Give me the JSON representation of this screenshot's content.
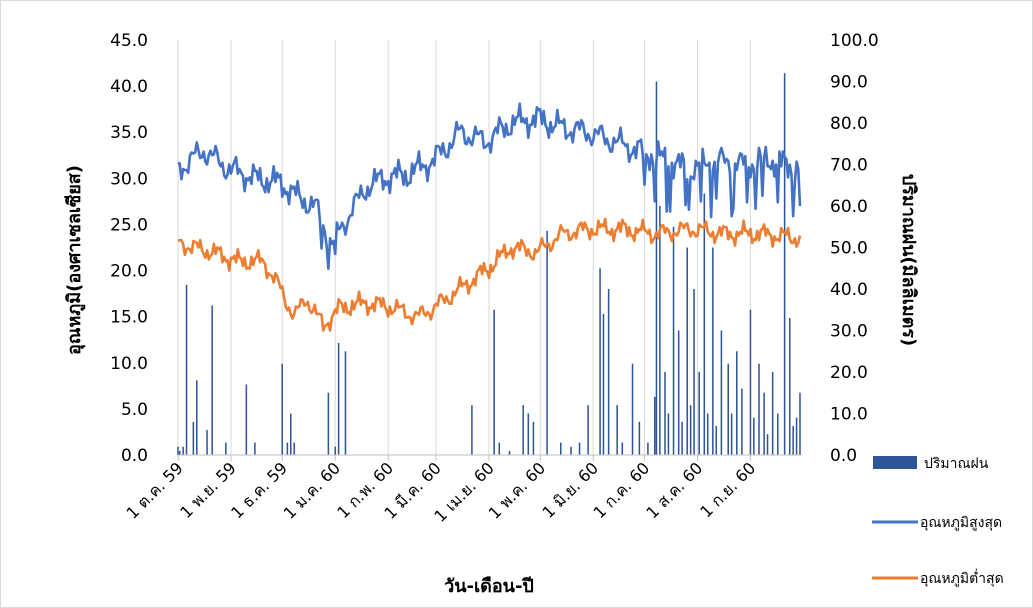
{
  "chart_data": {
    "type": "bar",
    "title": "",
    "xlabel": "วัน-เดือน-ปี",
    "ylabel_left": "อุณหภูมิ(องศาเซลเซียส)",
    "ylabel_right": "ปริมาณฝน(มิลลิเมตร)",
    "ylim_left": [
      0,
      45
    ],
    "ylim_right": [
      0,
      100
    ],
    "yticks_left": [
      "0.0",
      "5.0",
      "10.0",
      "15.0",
      "20.0",
      "25.0",
      "30.0",
      "35.0",
      "40.0",
      "45.0"
    ],
    "yticks_right": [
      "0.0",
      "10.0",
      "20.0",
      "30.0",
      "40.0",
      "50.0",
      "60.0",
      "70.0",
      "80.0",
      "90.0",
      "100.0"
    ],
    "grid": "vertical",
    "legend_position": "right",
    "xtick_labels": [
      {
        "date": "2016-10-01",
        "label": "1 ต.ค. 59"
      },
      {
        "date": "2016-11-01",
        "label": "1 พ.ย. 59"
      },
      {
        "date": "2016-12-01",
        "label": "1 ธ.ค. 59"
      },
      {
        "date": "2017-01-01",
        "label": "1 ม.ค. 60"
      },
      {
        "date": "2017-02-01",
        "label": "1 ก.พ. 60"
      },
      {
        "date": "2017-03-01",
        "label": "1 มี.ค. 60"
      },
      {
        "date": "2017-04-01",
        "label": "1 เม.ย. 60"
      },
      {
        "date": "2017-05-01",
        "label": "1 พ.ค. 60"
      },
      {
        "date": "2017-06-01",
        "label": "1 มิ.ย. 60"
      },
      {
        "date": "2017-07-01",
        "label": "1 ก.ค. 60"
      },
      {
        "date": "2017-08-01",
        "label": "1 ส.ค. 60"
      },
      {
        "date": "2017-09-01",
        "label": "1 ก.ย. 60"
      }
    ],
    "x": {
      "start": "2016-10-01",
      "end": "2017-09-30",
      "step": "1 day"
    },
    "series": [
      {
        "name": "ปริมาณฝน",
        "type": "bar",
        "axis": "right",
        "color": "#2f5597",
        "values": [
          2,
          1,
          0,
          2,
          0,
          0,
          0,
          0,
          0,
          0,
          0,
          0,
          0,
          0,
          0,
          0,
          0,
          0,
          0,
          0,
          0,
          0,
          0,
          0,
          0,
          0,
          0,
          0,
          0,
          0,
          0,
          0,
          0,
          0,
          0,
          0,
          0,
          0,
          0,
          0,
          0,
          0,
          0,
          0,
          0,
          0,
          0,
          0,
          0,
          0,
          0,
          0,
          0,
          0,
          0,
          0,
          0,
          0,
          0,
          0,
          0,
          0,
          0,
          0,
          0,
          0,
          0,
          0,
          0,
          0,
          0,
          0,
          0,
          0,
          0,
          0,
          0,
          0,
          0,
          0,
          0,
          0,
          0,
          0,
          0,
          0,
          0,
          0,
          0,
          0,
          0,
          0,
          0,
          0,
          0,
          0,
          0,
          0,
          0,
          0,
          0,
          0,
          0,
          0,
          0,
          0,
          0,
          0,
          0,
          0,
          0,
          0,
          0,
          0,
          0,
          0,
          0,
          0,
          0,
          0,
          0,
          0,
          0,
          0,
          0,
          0,
          0,
          0,
          0,
          0,
          0,
          0,
          0,
          0,
          0,
          0,
          0,
          0,
          0,
          0,
          0,
          0,
          0,
          0,
          0,
          0,
          0,
          0,
          0,
          0,
          0,
          0,
          0,
          0,
          0,
          0,
          0,
          0,
          0,
          0,
          0,
          0,
          0,
          0,
          0,
          0,
          0,
          0,
          0,
          0,
          0,
          0,
          0,
          0,
          0,
          0,
          0,
          0,
          0,
          0,
          0,
          0,
          0,
          0,
          0,
          0,
          0,
          0,
          0,
          0,
          0,
          0,
          0,
          0,
          0,
          0,
          0,
          0,
          0,
          0,
          0,
          0,
          0,
          0,
          0,
          0,
          0,
          0,
          0,
          0,
          0,
          0,
          0,
          0,
          0,
          0,
          0,
          0,
          0,
          0,
          0,
          0,
          0,
          0,
          0,
          0,
          0,
          0,
          0,
          0,
          0,
          0,
          0,
          0,
          0,
          0,
          0,
          0,
          0,
          0,
          0,
          0,
          0,
          0,
          0,
          0,
          0,
          0,
          0,
          0,
          0,
          0,
          0,
          0,
          0,
          0,
          0,
          0,
          0,
          0,
          0,
          0,
          0,
          0,
          0,
          0,
          0,
          0,
          0,
          0,
          0,
          0,
          0,
          0,
          0,
          0,
          0,
          0,
          0,
          0,
          0,
          0,
          0,
          0,
          0,
          0,
          0,
          0,
          0,
          0,
          0,
          0,
          0,
          0,
          0,
          0,
          0,
          0,
          0,
          0,
          0,
          0,
          0,
          0,
          0,
          0,
          0,
          0,
          0,
          0,
          0,
          0,
          0,
          0,
          0,
          0,
          0,
          0,
          0,
          0,
          0,
          0,
          0,
          0,
          0,
          0,
          0,
          0,
          0,
          0,
          0,
          0,
          0,
          0,
          0,
          0,
          0,
          0,
          0,
          0,
          0,
          0,
          0,
          0,
          0,
          0,
          0,
          0,
          0,
          0,
          0,
          0,
          0,
          0,
          0,
          0,
          0,
          0,
          0,
          0,
          0,
          0,
          0,
          0,
          0,
          0,
          0,
          0,
          0
        ]
      },
      {
        "name": "อุณหภูมิสูงสุด",
        "type": "line",
        "axis": "left",
        "color": "#4472c4",
        "values": []
      },
      {
        "name": "อุณหภูมิต่ำสุด",
        "type": "line",
        "axis": "left",
        "color": "#ed7d31",
        "values": []
      }
    ]
  }
}
